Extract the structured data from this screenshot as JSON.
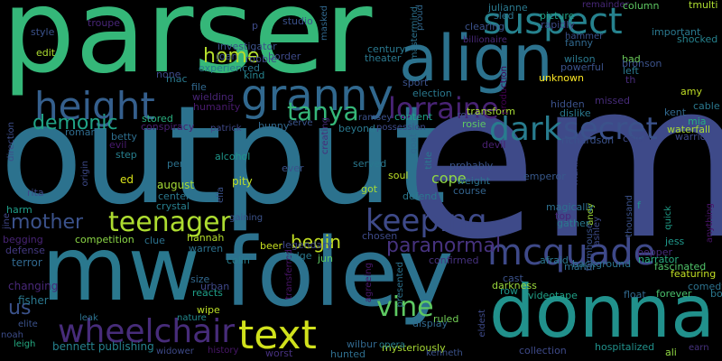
{
  "word_cloud": {
    "background": "#000000",
    "palette": [
      "#440154",
      "#3b528b",
      "#21918c",
      "#5ec962",
      "#fde725"
    ],
    "words": [
      {
        "text": "parser",
        "color": "#35b779"
      },
      {
        "text": "output",
        "color": "#2c728e"
      },
      {
        "text": "em",
        "color": "#3e4a89"
      },
      {
        "text": "mw",
        "color": "#2a788e"
      },
      {
        "text": "foley",
        "color": "#2c728e"
      },
      {
        "text": "donna",
        "color": "#21918c"
      },
      {
        "text": "align",
        "color": "#2c728e"
      },
      {
        "text": "granny",
        "color": "#31688e"
      },
      {
        "text": "height",
        "color": "#355f8d"
      },
      {
        "text": "suspect",
        "color": "#26828e"
      },
      {
        "text": "dark",
        "color": "#287c8e"
      },
      {
        "text": "secret",
        "color": "#3b528b"
      },
      {
        "text": "lorraine",
        "color": "#482374"
      },
      {
        "text": "tanya",
        "color": "#35b779"
      },
      {
        "text": "home",
        "color": "#b5de2b"
      },
      {
        "text": "demonic",
        "color": "#20a386"
      },
      {
        "text": "teenager",
        "color": "#addc30"
      },
      {
        "text": "keeping",
        "color": "#3e4a89"
      },
      {
        "text": "mother",
        "color": "#3b528b"
      },
      {
        "text": "mcquade",
        "color": "#3e4989"
      },
      {
        "text": "wheelchair",
        "color": "#472c7a"
      },
      {
        "text": "text",
        "color": "#d0e11c"
      },
      {
        "text": "vine",
        "color": "#5ec962"
      },
      {
        "text": "paranormal",
        "color": "#46327e"
      },
      {
        "text": "begin",
        "color": "#c2df23"
      },
      {
        "text": "us",
        "color": "#3b528b"
      },
      {
        "text": "cope",
        "color": "#8fd744"
      },
      {
        "text": "bennett publishing",
        "color": "#26828e"
      },
      {
        "text": "mysteriously",
        "color": "#a8db34"
      },
      {
        "text": "collection",
        "color": "#3e4a89"
      },
      {
        "text": "hospitalized",
        "color": "#21918c"
      },
      {
        "text": "ali",
        "color": "#90d743"
      },
      {
        "text": "earn",
        "color": "#46327e"
      },
      {
        "text": "opera",
        "color": "#277f8e"
      },
      {
        "text": "wilbur",
        "color": "#31688e"
      },
      {
        "text": "kenneth",
        "color": "#3b528b"
      },
      {
        "text": "hunted",
        "color": "#2e6e8e"
      },
      {
        "text": "worst",
        "color": "#46307e"
      },
      {
        "text": "history",
        "color": "#481769"
      },
      {
        "text": "widower",
        "color": "#3e4a89"
      },
      {
        "text": "leigh",
        "color": "#25ab82"
      },
      {
        "text": "noah",
        "color": "#3d4d8a"
      },
      {
        "text": "elite",
        "color": "#3b528b"
      },
      {
        "text": "fisher",
        "color": "#2a788e"
      },
      {
        "text": "changing",
        "color": "#482878"
      },
      {
        "text": "terror",
        "color": "#31688e"
      },
      {
        "text": "defense",
        "color": "#443a83"
      },
      {
        "text": "begging",
        "color": "#482475"
      },
      {
        "text": "leak",
        "color": "#2c728e"
      },
      {
        "text": "nature",
        "color": "#23898e"
      },
      {
        "text": "wipe",
        "color": "#bddf26"
      },
      {
        "text": "urban",
        "color": "#3f4889"
      },
      {
        "text": "reacts",
        "color": "#1f9f88"
      },
      {
        "text": "size",
        "color": "#31688e"
      },
      {
        "text": "transferred",
        "color": "#481467"
      },
      {
        "text": "legendary",
        "color": "#3f4889"
      },
      {
        "text": "lodge",
        "color": "#2a788e"
      },
      {
        "text": "beer",
        "color": "#c8e020"
      },
      {
        "text": "jun",
        "color": "#5ec962"
      },
      {
        "text": "colin",
        "color": "#287d8e"
      },
      {
        "text": "hannah",
        "color": "#b5de2b"
      },
      {
        "text": "clue",
        "color": "#2c728e"
      },
      {
        "text": "warren",
        "color": "#2c728e"
      },
      {
        "text": "competition",
        "color": "#8bd646"
      },
      {
        "text": "gaining",
        "color": "#3b528b"
      },
      {
        "text": "crystal",
        "color": "#277f8e"
      },
      {
        "text": "center",
        "color": "#2a788e"
      },
      {
        "text": "august",
        "color": "#a5db36"
      },
      {
        "text": "pity",
        "color": "#c0df25"
      },
      {
        "text": "ella",
        "color": "#3b528b"
      },
      {
        "text": "alcohol",
        "color": "#1f968b"
      },
      {
        "text": "ed",
        "color": "#d8e219"
      },
      {
        "text": "per",
        "color": "#2c728e"
      },
      {
        "text": "origin",
        "color": "#3e4a89"
      },
      {
        "text": "harm",
        "color": "#1f9e89"
      },
      {
        "text": "jine",
        "color": "#404688"
      },
      {
        "text": "rita",
        "color": "#3e4a89"
      },
      {
        "text": "direction",
        "color": "#3d4e8a"
      },
      {
        "text": "evil",
        "color": "#481a6c"
      },
      {
        "text": "step",
        "color": "#277f8e"
      },
      {
        "text": "betty",
        "color": "#2e6e8e"
      },
      {
        "text": "roman",
        "color": "#2f6c8e"
      },
      {
        "text": "conspiracy",
        "color": "#482071"
      },
      {
        "text": "stored",
        "color": "#29af7f"
      },
      {
        "text": "humanity",
        "color": "#481a6c"
      },
      {
        "text": "patrick",
        "color": "#3f4889"
      },
      {
        "text": "bunny",
        "color": "#31688e"
      },
      {
        "text": "serve",
        "color": "#3a548c"
      },
      {
        "text": "creating",
        "color": "#472d7b"
      },
      {
        "text": "ever",
        "color": "#3b528b"
      },
      {
        "text": "served",
        "color": "#2a788e"
      },
      {
        "text": "got",
        "color": "#a5db36"
      },
      {
        "text": "defend",
        "color": "#2a788e"
      },
      {
        "text": "soul",
        "color": "#bddf26"
      },
      {
        "text": "goat",
        "color": "#31688e"
      },
      {
        "text": "title",
        "color": "#2a788e"
      },
      {
        "text": "course",
        "color": "#33638d"
      },
      {
        "text": "weight",
        "color": "#2c728e"
      },
      {
        "text": "probably",
        "color": "#3a548c"
      },
      {
        "text": "chosen",
        "color": "#3e4a89"
      },
      {
        "text": "confirmed",
        "color": "#46327e"
      },
      {
        "text": "darkness",
        "color": "#9bd93c"
      },
      {
        "text": "agreeing",
        "color": "#48186a"
      },
      {
        "text": "presented",
        "color": "#2c728e"
      },
      {
        "text": "display",
        "color": "#31688e"
      },
      {
        "text": "ruled",
        "color": "#73d056"
      },
      {
        "text": "videotape",
        "color": "#1fa187"
      },
      {
        "text": "row",
        "color": "#1f958b"
      },
      {
        "text": "cast",
        "color": "#3b528b"
      },
      {
        "text": "eldest",
        "color": "#3e4a89"
      },
      {
        "text": "afraid",
        "color": "#2a788e"
      },
      {
        "text": "manor",
        "color": "#2d708e"
      },
      {
        "text": "background",
        "color": "#2c728e"
      },
      {
        "text": "narrator",
        "color": "#28ae80"
      },
      {
        "text": "fascinated",
        "color": "#50c46a"
      },
      {
        "text": "featuring",
        "color": "#c2df23"
      },
      {
        "text": "forever",
        "color": "#4ac16d"
      },
      {
        "text": "float",
        "color": "#31688e"
      },
      {
        "text": "comedy",
        "color": "#2c728e"
      },
      {
        "text": "box",
        "color": "#2a788e"
      },
      {
        "text": "pepper",
        "color": "#472c7a"
      },
      {
        "text": "jess",
        "color": "#1f988b"
      },
      {
        "text": "anything",
        "color": "#481467"
      },
      {
        "text": "farmhouse",
        "color": "#3b528b"
      },
      {
        "text": "ashley",
        "color": "#3e4a89"
      },
      {
        "text": "thousand",
        "color": "#3b528b"
      },
      {
        "text": "quick",
        "color": "#1f9e89"
      },
      {
        "text": "f",
        "color": "#21918c"
      },
      {
        "text": "andy",
        "color": "#a0da39"
      },
      {
        "text": "marine",
        "color": "#3e4a89"
      },
      {
        "text": "top",
        "color": "#482677"
      },
      {
        "text": "gather",
        "color": "#2a788e"
      },
      {
        "text": "magically",
        "color": "#2d708e"
      },
      {
        "text": "emperor",
        "color": "#38598c"
      },
      {
        "text": "devil",
        "color": "#482071"
      },
      {
        "text": "rosie",
        "color": "#5ec962"
      },
      {
        "text": "roger",
        "color": "#3f4889"
      },
      {
        "text": "richardson",
        "color": "#3b528b"
      },
      {
        "text": "color",
        "color": "#3e4a89"
      },
      {
        "text": "waterfall",
        "color": "#a8db34"
      },
      {
        "text": "warrior",
        "color": "#3e4a89"
      },
      {
        "text": "mia",
        "color": "#26ad81"
      },
      {
        "text": "cable",
        "color": "#2a788e"
      },
      {
        "text": "kent",
        "color": "#31688e"
      },
      {
        "text": "amy",
        "color": "#c0df25"
      },
      {
        "text": "dislike",
        "color": "#2a788e"
      },
      {
        "text": "missed",
        "color": "#472c7a"
      },
      {
        "text": "hidden",
        "color": "#3b528b"
      },
      {
        "text": "transform",
        "color": "#a8db34"
      },
      {
        "text": "production",
        "color": "#440154"
      },
      {
        "text": "election",
        "color": "#2a788e"
      },
      {
        "text": "sport",
        "color": "#3b528b"
      },
      {
        "text": "content",
        "color": "#1fa187"
      },
      {
        "text": "possession",
        "color": "#3e4a89"
      },
      {
        "text": "beyond",
        "color": "#2a788e"
      },
      {
        "text": "ramsey",
        "color": "#3b528b"
      },
      {
        "text": "julianne",
        "color": "#2a788e"
      },
      {
        "text": "picture",
        "color": "#1fa187"
      },
      {
        "text": "rapidly",
        "color": "#3e4a89"
      },
      {
        "text": "sled",
        "color": "#2c728e"
      },
      {
        "text": "clearing",
        "color": "#3b528b"
      },
      {
        "text": "billionaire",
        "color": "#482878"
      },
      {
        "text": "fanny",
        "color": "#31688e"
      },
      {
        "text": "hammer",
        "color": "#3b528b"
      },
      {
        "text": "wilson",
        "color": "#2a788e"
      },
      {
        "text": "powerful",
        "color": "#3b528b"
      },
      {
        "text": "unknown",
        "color": "#fde725"
      },
      {
        "text": "bad",
        "color": "#6ccd5a"
      },
      {
        "text": "left",
        "color": "#2a788e"
      },
      {
        "text": "th",
        "color": "#472c7a"
      },
      {
        "text": "bronson",
        "color": "#3b528b"
      },
      {
        "text": "remainder",
        "color": "#482878"
      },
      {
        "text": "column",
        "color": "#5ec962"
      },
      {
        "text": "tmulti",
        "color": "#addc30"
      },
      {
        "text": "important",
        "color": "#2a788e"
      },
      {
        "text": "shocked",
        "color": "#26828e"
      },
      {
        "text": "studio",
        "color": "#3b528b"
      },
      {
        "text": "masked",
        "color": "#31688e"
      },
      {
        "text": "mastermind",
        "color": "#2c728e"
      },
      {
        "text": "proud",
        "color": "#31688e"
      },
      {
        "text": "century",
        "color": "#2a788e"
      },
      {
        "text": "theater",
        "color": "#2a788e"
      },
      {
        "text": "border",
        "color": "#3e4a89"
      },
      {
        "text": "robbie",
        "color": "#3e4a89"
      },
      {
        "text": "investigator",
        "color": "#3b528b"
      },
      {
        "text": "joan",
        "color": "#3b528b"
      },
      {
        "text": "experienced",
        "color": "#2a788e"
      },
      {
        "text": "kind",
        "color": "#26828e"
      },
      {
        "text": "mac",
        "color": "#2a788e"
      },
      {
        "text": "none",
        "color": "#3e4a89"
      },
      {
        "text": "file",
        "color": "#31688e"
      },
      {
        "text": "wielding",
        "color": "#482475"
      },
      {
        "text": "troupe",
        "color": "#482677"
      },
      {
        "text": "style",
        "color": "#3b528b"
      },
      {
        "text": "edit",
        "color": "#addc30"
      },
      {
        "text": "p",
        "color": "#3e4a89"
      }
    ]
  }
}
